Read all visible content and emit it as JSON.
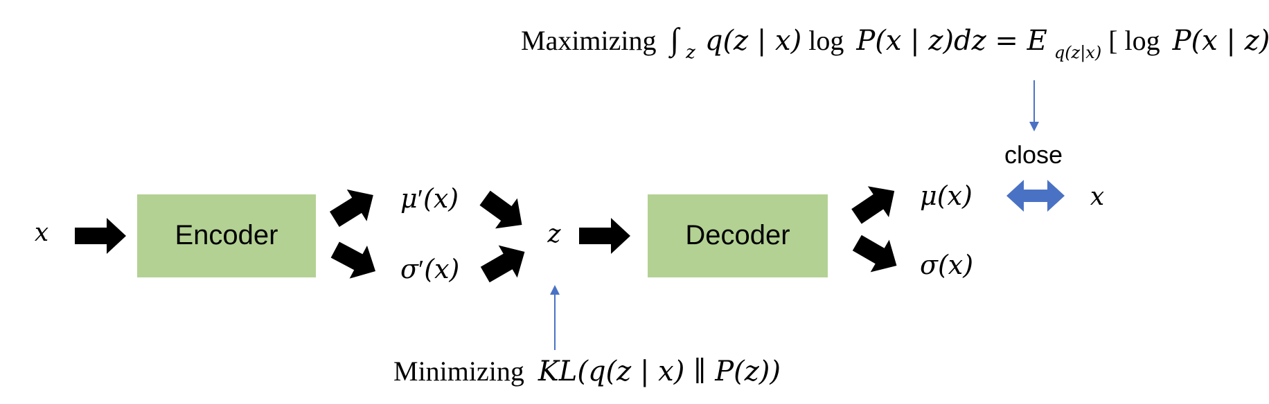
{
  "colors": {
    "box_fill": "#B3D193",
    "arrow_black": "#000000",
    "arrow_blue": "#4A72C4"
  },
  "input_x": "x",
  "encoder": {
    "label": "Encoder"
  },
  "mu_prime": {
    "sym": "μ",
    "prime": "′",
    "arg": "(x)"
  },
  "sigma_prime": {
    "sym": "σ",
    "prime": "′",
    "arg": "(x)"
  },
  "latent_z": "z",
  "decoder": {
    "label": "Decoder"
  },
  "mu_out": "μ(x)",
  "sigma_out": "σ(x)",
  "target_x": "x",
  "close_label": "close",
  "top_annotation": {
    "prefix": "Maximizing",
    "integral": "∫",
    "integral_sub": "z",
    "body": "q(z | x)",
    "log": "log",
    "body2": "P(x | z)dz = E",
    "sub": "q(z|x)",
    "bracket_open": "[",
    "log2": "log",
    "body3": "P(x | z)",
    "bracket_close": "]"
  },
  "bottom_annotation": {
    "prefix": "Minimizing",
    "body": "KL(q(z | x) ∥ P(z))"
  }
}
